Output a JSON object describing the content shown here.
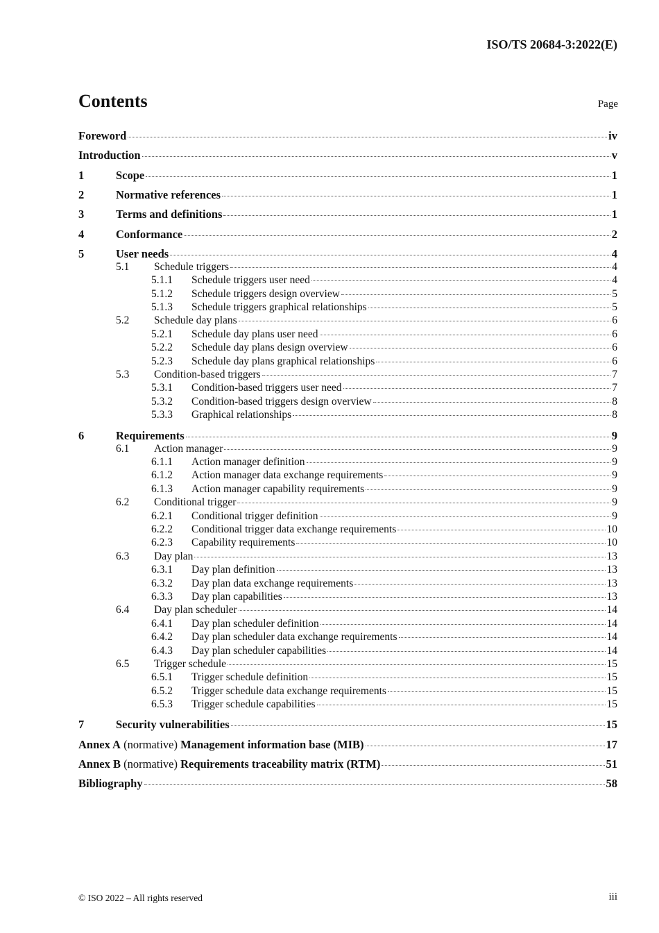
{
  "header": {
    "doc_id": "ISO/TS 20684-3:2022(E)"
  },
  "contents": {
    "title": "Contents",
    "page_label": "Page"
  },
  "entries": [
    {
      "level": 0,
      "num": "",
      "title": "Foreword",
      "page": "iv"
    },
    {
      "level": 0,
      "num": "",
      "title": "Introduction",
      "page": "v"
    },
    {
      "level": 1,
      "num": "1",
      "title": "Scope",
      "page": "1"
    },
    {
      "level": 1,
      "num": "2",
      "title": "Normative references",
      "page": "1"
    },
    {
      "level": 1,
      "num": "3",
      "title": "Terms and definitions",
      "page": "1"
    },
    {
      "level": 1,
      "num": "4",
      "title": "Conformance",
      "page": "2"
    },
    {
      "level": 1,
      "num": "5",
      "title": "User needs",
      "page": "4"
    },
    {
      "level": 2,
      "num": "5.1",
      "title": "Schedule triggers",
      "page": "4"
    },
    {
      "level": 3,
      "num": "5.1.1",
      "title": "Schedule triggers user need",
      "page": "4"
    },
    {
      "level": 3,
      "num": "5.1.2",
      "title": "Schedule triggers design overview",
      "page": "5"
    },
    {
      "level": 3,
      "num": "5.1.3",
      "title": "Schedule triggers graphical relationships",
      "page": "5"
    },
    {
      "level": 2,
      "num": "5.2",
      "title": "Schedule day plans",
      "page": "6"
    },
    {
      "level": 3,
      "num": "5.2.1",
      "title": "Schedule day plans user need",
      "page": "6"
    },
    {
      "level": 3,
      "num": "5.2.2",
      "title": "Schedule day plans design overview",
      "page": "6"
    },
    {
      "level": 3,
      "num": "5.2.3",
      "title": "Schedule day plans graphical relationships",
      "page": "6"
    },
    {
      "level": 2,
      "num": "5.3",
      "title": "Condition-based triggers",
      "page": "7"
    },
    {
      "level": 3,
      "num": "5.3.1",
      "title": "Condition-based triggers user need",
      "page": "7"
    },
    {
      "level": 3,
      "num": "5.3.2",
      "title": "Condition-based triggers design overview",
      "page": "8"
    },
    {
      "level": 3,
      "num": "5.3.3",
      "title": "Graphical relationships",
      "page": "8"
    },
    {
      "level": 1,
      "num": "6",
      "title": "Requirements",
      "page": "9"
    },
    {
      "level": 2,
      "num": "6.1",
      "title": "Action manager",
      "page": "9"
    },
    {
      "level": 3,
      "num": "6.1.1",
      "title": "Action manager definition",
      "page": "9"
    },
    {
      "level": 3,
      "num": "6.1.2",
      "title": "Action manager data exchange requirements",
      "page": "9"
    },
    {
      "level": 3,
      "num": "6.1.3",
      "title": "Action manager capability requirements",
      "page": "9"
    },
    {
      "level": 2,
      "num": "6.2",
      "title": "Conditional trigger",
      "page": "9"
    },
    {
      "level": 3,
      "num": "6.2.1",
      "title": "Conditional trigger definition",
      "page": "9"
    },
    {
      "level": 3,
      "num": "6.2.2",
      "title": "Conditional trigger data exchange requirements",
      "page": "10"
    },
    {
      "level": 3,
      "num": "6.2.3",
      "title": "Capability requirements",
      "page": "10"
    },
    {
      "level": 2,
      "num": "6.3",
      "title": "Day plan",
      "page": "13"
    },
    {
      "level": 3,
      "num": "6.3.1",
      "title": "Day plan definition",
      "page": "13"
    },
    {
      "level": 3,
      "num": "6.3.2",
      "title": "Day plan data exchange requirements",
      "page": "13"
    },
    {
      "level": 3,
      "num": "6.3.3",
      "title": "Day plan capabilities",
      "page": "13"
    },
    {
      "level": 2,
      "num": "6.4",
      "title": "Day plan scheduler",
      "page": "14"
    },
    {
      "level": 3,
      "num": "6.4.1",
      "title": "Day plan scheduler definition",
      "page": "14"
    },
    {
      "level": 3,
      "num": "6.4.2",
      "title": "Day plan scheduler data exchange requirements",
      "page": "14"
    },
    {
      "level": 3,
      "num": "6.4.3",
      "title": "Day plan scheduler capabilities",
      "page": "14"
    },
    {
      "level": 2,
      "num": "6.5",
      "title": "Trigger schedule",
      "page": "15"
    },
    {
      "level": 3,
      "num": "6.5.1",
      "title": "Trigger schedule definition",
      "page": "15"
    },
    {
      "level": 3,
      "num": "6.5.2",
      "title": "Trigger schedule data exchange requirements",
      "page": "15"
    },
    {
      "level": 3,
      "num": "6.5.3",
      "title": "Trigger schedule capabilities",
      "page": "15"
    },
    {
      "level": 1,
      "num": "7",
      "title": "Security vulnerabilities",
      "page": "15"
    },
    {
      "level": 0,
      "num": "",
      "annex": "Annex A",
      "kind": "(normative)",
      "title": "Management information base (MIB)",
      "page": "17"
    },
    {
      "level": 0,
      "num": "",
      "annex": "Annex B",
      "kind": "(normative)",
      "title": "Requirements traceability matrix (RTM)",
      "page": "51"
    },
    {
      "level": 0,
      "num": "",
      "title": "Bibliography",
      "page": "58"
    }
  ],
  "footer": {
    "copyright": "© ISO 2022 – All rights reserved",
    "page_number": "iii"
  }
}
